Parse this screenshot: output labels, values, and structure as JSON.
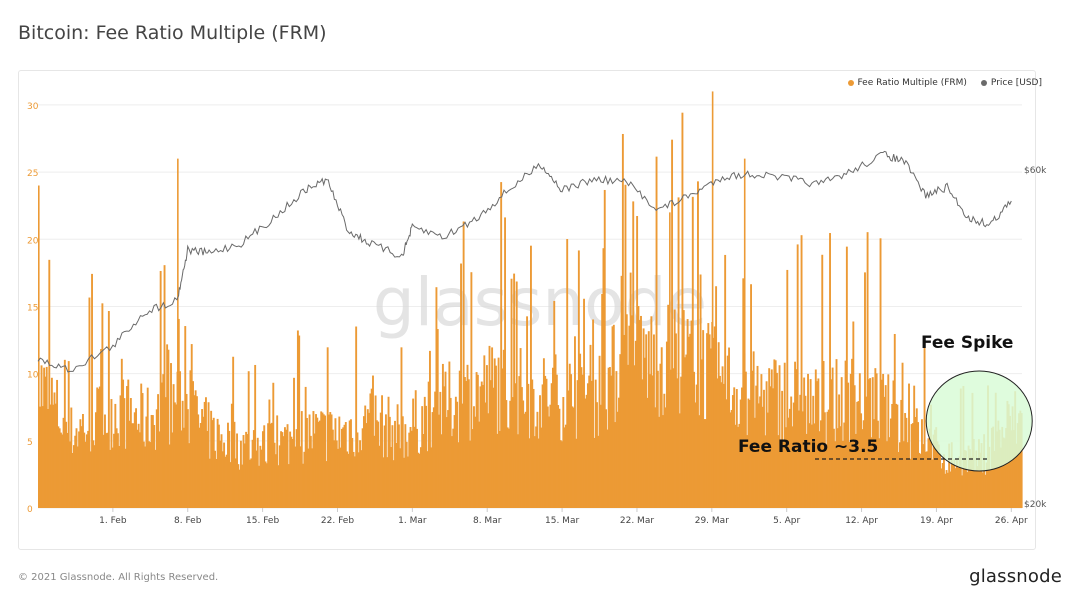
{
  "page": {
    "title": "Bitcoin: Fee Ratio Multiple (FRM)",
    "footer_copyright": "© 2021 Glassnode. All Rights Reserved.",
    "footer_brand": "glassnode"
  },
  "colors": {
    "frm": "#ec9a35",
    "price": "#6a6a6a",
    "highlight_fill": "#d9fbd7",
    "highlight_stroke": "#222222"
  },
  "chart_data": {
    "type": "bar",
    "title": "Bitcoin: Fee Ratio Multiple (FRM)",
    "watermark": "glassnode",
    "legend": [
      "Fee Ratio Multiple (FRM)",
      "Price [USD]"
    ],
    "legend_position": "top-right",
    "x_range": [
      "2021-01-25",
      "2021-04-27"
    ],
    "x_ticks": [
      "1. Feb",
      "8. Feb",
      "15. Feb",
      "22. Feb",
      "1. Mar",
      "8. Mar",
      "15. Mar",
      "22. Mar",
      "29. Mar",
      "5. Apr",
      "12. Apr",
      "19. Apr",
      "26. Apr"
    ],
    "y_left_ticks": [
      "0",
      "5",
      "10",
      "15",
      "20",
      "25",
      "30"
    ],
    "y_left_range": [
      0,
      32
    ],
    "y_right_ticks": [
      "$20k",
      "$60k"
    ],
    "y_right_scale": "log",
    "grid": true,
    "series": [
      {
        "name": "Fee Ratio Multiple (FRM)",
        "axis": "left",
        "x": [
          "2021-01-25",
          "2021-01-28",
          "2021-02-01",
          "2021-02-04",
          "2021-02-07",
          "2021-02-10",
          "2021-02-13",
          "2021-02-16",
          "2021-02-19",
          "2021-02-22",
          "2021-02-25",
          "2021-02-28",
          "2021-03-03",
          "2021-03-06",
          "2021-03-09",
          "2021-03-12",
          "2021-03-15",
          "2021-03-18",
          "2021-03-21",
          "2021-03-24",
          "2021-03-27",
          "2021-03-30",
          "2021-04-02",
          "2021-04-05",
          "2021-04-08",
          "2021-04-11",
          "2021-04-14",
          "2021-04-17",
          "2021-04-20",
          "2021-04-23",
          "2021-04-26"
        ],
        "values": [
          10,
          6,
          8,
          7,
          9,
          6,
          5,
          5,
          6,
          6,
          7,
          6,
          8,
          9,
          10,
          9,
          9,
          9,
          12,
          12,
          12,
          10,
          9,
          9,
          8,
          9,
          8,
          6,
          4,
          4,
          7
        ],
        "peaks": [
          {
            "x": "2021-01-25",
            "y": 24
          },
          {
            "x": "2021-02-07",
            "y": 26
          },
          {
            "x": "2021-03-25",
            "y": 22
          },
          {
            "x": "2021-03-29",
            "y": 31
          },
          {
            "x": "2021-04-01",
            "y": 26
          }
        ]
      },
      {
        "name": "Price [USD]",
        "axis": "right",
        "x": [
          "2021-01-25",
          "2021-01-28",
          "2021-02-01",
          "2021-02-04",
          "2021-02-07",
          "2021-02-08",
          "2021-02-10",
          "2021-02-13",
          "2021-02-16",
          "2021-02-19",
          "2021-02-21",
          "2021-02-23",
          "2021-02-25",
          "2021-02-28",
          "2021-03-01",
          "2021-03-04",
          "2021-03-07",
          "2021-03-10",
          "2021-03-13",
          "2021-03-15",
          "2021-03-18",
          "2021-03-21",
          "2021-03-24",
          "2021-03-27",
          "2021-03-30",
          "2021-04-02",
          "2021-04-05",
          "2021-04-08",
          "2021-04-11",
          "2021-04-14",
          "2021-04-16",
          "2021-04-18",
          "2021-04-20",
          "2021-04-22",
          "2021-04-24",
          "2021-04-26"
        ],
        "values": [
          32000,
          31000,
          33500,
          37500,
          39000,
          46000,
          45500,
          47000,
          51000,
          56000,
          58000,
          49000,
          47000,
          45000,
          49500,
          48000,
          51000,
          56000,
          61000,
          56000,
          58000,
          57500,
          52500,
          55000,
          58500,
          59000,
          58200,
          57000,
          59500,
          63000,
          61500,
          55000,
          56500,
          51000,
          50000,
          54000
        ]
      }
    ],
    "annotations": [
      {
        "text": "Fee Spike",
        "x": "2021-04-23",
        "y": 12.5
      },
      {
        "text": "Fee Ratio ~3.5",
        "x": "2021-04-10",
        "y": 3.5
      }
    ]
  }
}
